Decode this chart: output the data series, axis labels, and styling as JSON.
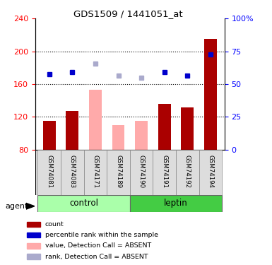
{
  "title": "GDS1509 / 1441051_at",
  "samples": [
    "GSM74081",
    "GSM74083",
    "GSM74171",
    "GSM74189",
    "GSM74190",
    "GSM74191",
    "GSM74192",
    "GSM74194"
  ],
  "groups": [
    "control",
    "control",
    "control",
    "control",
    "leptin",
    "leptin",
    "leptin",
    "leptin"
  ],
  "bar_values": [
    115,
    127,
    null,
    null,
    null,
    136,
    132,
    215
  ],
  "bar_values_absent": [
    null,
    null,
    153,
    110,
    115,
    null,
    null,
    null
  ],
  "dot_values": [
    172,
    175,
    null,
    null,
    null,
    175,
    170,
    196
  ],
  "dot_values_absent": [
    null,
    null,
    185,
    170,
    168,
    null,
    null,
    null
  ],
  "ylim_left": [
    80,
    240
  ],
  "ylim_right": [
    0,
    100
  ],
  "yticks_left": [
    80,
    120,
    160,
    200,
    240
  ],
  "yticks_right": [
    0,
    25,
    50,
    75,
    100
  ],
  "ytick_labels_right": [
    "0",
    "25",
    "50",
    "75",
    "100%"
  ],
  "bar_color_present": "#aa0000",
  "bar_color_absent": "#ffaaaa",
  "dot_color_present": "#0000cc",
  "dot_color_absent": "#aaaacc",
  "control_group_color_light": "#ccffcc",
  "control_group_color": "#88ee88",
  "leptin_group_color": "#44bb44",
  "legend_items": [
    {
      "label": "count",
      "color": "#aa0000"
    },
    {
      "label": "percentile rank within the sample",
      "color": "#0000cc"
    },
    {
      "label": "value, Detection Call = ABSENT",
      "color": "#ffaaaa"
    },
    {
      "label": "rank, Detection Call = ABSENT",
      "color": "#aaaacc"
    }
  ]
}
